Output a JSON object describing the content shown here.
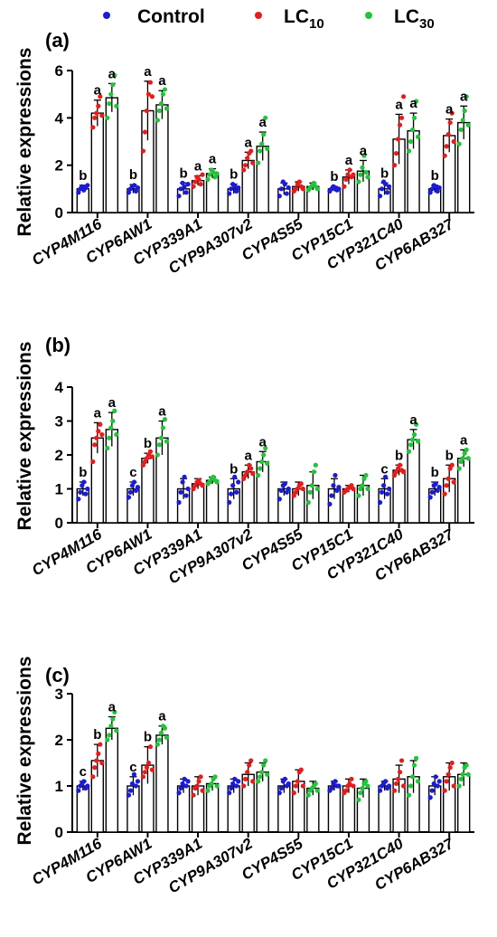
{
  "legend": [
    {
      "name": "Control",
      "sub": "",
      "color": "#1b1bd8"
    },
    {
      "name": "LC",
      "sub": "10",
      "color": "#e81b1b"
    },
    {
      "name": "LC",
      "sub": "30",
      "color": "#22c43a"
    }
  ],
  "chart_data": [
    {
      "type": "bar",
      "panel_label": "(a)",
      "ylabel": "Relative expressions",
      "ylim": [
        0,
        6
      ],
      "yticks": [
        0,
        2,
        4,
        6
      ],
      "categories": [
        "CYP4M116",
        "CYP6AW1",
        "CYP339A1",
        "CYP9A307v2",
        "CYP4S55",
        "CYP15C1",
        "CYP321C40",
        "CYP6AB327"
      ],
      "series": [
        {
          "name": "Control",
          "values": [
            1.0,
            1.0,
            1.0,
            1.0,
            1.0,
            1.0,
            1.0,
            1.0
          ],
          "errors": [
            0.15,
            0.18,
            0.25,
            0.2,
            0.25,
            0.1,
            0.25,
            0.15
          ],
          "points": [
            [
              0.85,
              1.0,
              1.1,
              0.95,
              1.05,
              1.15
            ],
            [
              0.85,
              1.0,
              1.1,
              1.15,
              0.9,
              1.05
            ],
            [
              0.7,
              1.0,
              1.25,
              1.1,
              0.85,
              1.2
            ],
            [
              0.8,
              1.0,
              1.2,
              1.1,
              0.9,
              1.05
            ],
            [
              0.7,
              1.0,
              1.3,
              1.2,
              0.8,
              1.05
            ],
            [
              0.9,
              1.0,
              1.1,
              1.05,
              0.95,
              1.0
            ],
            [
              0.7,
              1.0,
              1.3,
              1.2,
              0.85,
              1.1
            ],
            [
              0.85,
              1.0,
              1.15,
              1.1,
              0.9,
              1.05
            ]
          ]
        },
        {
          "name": "LC10",
          "values": [
            4.2,
            4.3,
            1.35,
            2.2,
            1.1,
            1.5,
            3.1,
            3.25
          ],
          "errors": [
            0.55,
            1.25,
            0.2,
            0.35,
            0.2,
            0.3,
            1.05,
            0.7
          ],
          "points": [
            [
              3.6,
              4.0,
              4.2,
              4.5,
              4.9,
              4.1
            ],
            [
              2.6,
              3.4,
              4.3,
              5.0,
              5.5,
              4.9
            ],
            [
              1.1,
              1.3,
              1.5,
              1.4,
              1.2,
              1.6
            ],
            [
              1.8,
              2.0,
              2.3,
              2.5,
              2.6,
              2.1
            ],
            [
              0.9,
              1.0,
              1.2,
              1.3,
              1.1,
              1.0
            ],
            [
              1.1,
              1.4,
              1.6,
              1.8,
              1.5,
              1.6
            ],
            [
              2.0,
              2.5,
              3.1,
              3.7,
              4.0,
              4.9
            ],
            [
              2.4,
              2.8,
              3.3,
              3.8,
              4.2,
              3.0
            ]
          ]
        },
        {
          "name": "LC30",
          "values": [
            4.85,
            4.55,
            1.65,
            2.8,
            1.1,
            1.75,
            3.45,
            3.8
          ],
          "errors": [
            0.6,
            0.6,
            0.2,
            0.6,
            0.15,
            0.45,
            0.75,
            0.7
          ],
          "points": [
            [
              4.0,
              4.6,
              5.0,
              5.4,
              5.8,
              4.5
            ],
            [
              3.9,
              4.3,
              4.6,
              5.0,
              5.2,
              4.4
            ],
            [
              1.4,
              1.6,
              1.8,
              1.7,
              1.5,
              1.65
            ],
            [
              2.1,
              2.6,
              2.9,
              3.3,
              4.0,
              2.7
            ],
            [
              0.95,
              1.05,
              1.15,
              1.25,
              1.1,
              1.0
            ],
            [
              1.3,
              1.6,
              1.9,
              2.4,
              1.7,
              1.5
            ],
            [
              2.6,
              3.0,
              3.5,
              4.0,
              4.7,
              3.2
            ],
            [
              2.9,
              3.5,
              3.9,
              4.3,
              4.9,
              3.7
            ]
          ]
        }
      ],
      "significance": [
        [
          "b",
          "a",
          "a"
        ],
        [
          "b",
          "a",
          "a"
        ],
        [
          "b",
          "a",
          "a"
        ],
        [
          "b",
          "a",
          "a"
        ],
        [
          "",
          "",
          ""
        ],
        [
          "b",
          "a",
          "a"
        ],
        [
          "b",
          "a",
          "a"
        ],
        [
          "b",
          "a",
          "a"
        ]
      ]
    },
    {
      "type": "bar",
      "panel_label": "(b)",
      "ylabel": "Relative expressions",
      "ylim": [
        0,
        4
      ],
      "yticks": [
        0,
        1,
        2,
        3,
        4
      ],
      "categories": [
        "CYP4M116",
        "CYP6AW1",
        "CYP339A1",
        "CYP9A307v2",
        "CYP4S55",
        "CYP15C1",
        "CYP321C40",
        "CYP6AB327"
      ],
      "series": [
        {
          "name": "Control",
          "values": [
            1.0,
            1.0,
            1.0,
            1.0,
            1.0,
            1.0,
            1.0,
            1.0
          ],
          "errors": [
            0.2,
            0.2,
            0.3,
            0.3,
            0.2,
            0.3,
            0.3,
            0.2
          ],
          "points": [
            [
              0.7,
              0.9,
              1.1,
              1.2,
              0.85,
              1.0
            ],
            [
              0.75,
              0.9,
              1.1,
              1.2,
              0.95,
              1.05
            ],
            [
              0.6,
              0.9,
              1.2,
              1.35,
              0.8,
              1.0
            ],
            [
              0.6,
              0.85,
              1.1,
              1.35,
              0.9,
              1.2
            ],
            [
              0.7,
              0.95,
              1.1,
              1.15,
              0.9,
              1.0
            ],
            [
              0.55,
              0.8,
              1.1,
              1.4,
              0.95,
              1.05
            ],
            [
              0.6,
              0.9,
              1.1,
              1.35,
              0.85,
              1.0
            ],
            [
              0.75,
              0.9,
              1.1,
              1.15,
              0.95,
              1.05
            ]
          ]
        },
        {
          "name": "LC10",
          "values": [
            2.5,
            1.9,
            1.15,
            1.5,
            1.0,
            1.0,
            1.55,
            1.3
          ],
          "errors": [
            0.45,
            0.15,
            0.15,
            0.2,
            0.2,
            0.1,
            0.15,
            0.4
          ],
          "points": [
            [
              1.8,
              2.3,
              2.5,
              2.7,
              2.9,
              2.6
            ],
            [
              1.7,
              1.8,
              1.9,
              2.0,
              2.1,
              1.95
            ],
            [
              1.0,
              1.1,
              1.2,
              1.25,
              1.15,
              1.1
            ],
            [
              1.3,
              1.4,
              1.5,
              1.7,
              1.6,
              1.45
            ],
            [
              0.8,
              0.9,
              1.0,
              1.1,
              1.15,
              1.0
            ],
            [
              0.9,
              0.95,
              1.0,
              1.05,
              1.1,
              1.0
            ],
            [
              1.4,
              1.5,
              1.6,
              1.7,
              1.55,
              1.5
            ],
            [
              0.85,
              1.1,
              1.3,
              1.6,
              1.7,
              1.2
            ]
          ]
        },
        {
          "name": "LC30",
          "values": [
            2.75,
            2.5,
            1.25,
            1.8,
            1.1,
            1.1,
            2.45,
            1.9
          ],
          "errors": [
            0.5,
            0.5,
            0.1,
            0.3,
            0.4,
            0.3,
            0.3,
            0.25
          ],
          "points": [
            [
              2.2,
              2.5,
              2.8,
              3.0,
              3.3,
              2.6
            ],
            [
              2.0,
              2.3,
              2.5,
              2.8,
              3.05,
              2.4
            ],
            [
              1.15,
              1.2,
              1.3,
              1.35,
              1.25,
              1.2
            ],
            [
              1.4,
              1.6,
              1.8,
              2.0,
              2.2,
              1.75
            ],
            [
              0.6,
              0.9,
              1.1,
              1.5,
              1.7,
              1.0
            ],
            [
              0.8,
              1.0,
              1.1,
              1.3,
              1.4,
              1.0
            ],
            [
              2.1,
              2.3,
              2.45,
              2.6,
              2.9,
              2.4
            ],
            [
              1.6,
              1.8,
              1.9,
              2.05,
              2.15,
              1.9
            ]
          ]
        }
      ],
      "significance": [
        [
          "b",
          "a",
          "a"
        ],
        [
          "c",
          "b",
          "a"
        ],
        [
          "",
          "",
          ""
        ],
        [
          "b",
          "a",
          "a"
        ],
        [
          "",
          "",
          ""
        ],
        [
          "",
          "",
          ""
        ],
        [
          "c",
          "b",
          "a"
        ],
        [
          "b",
          "b",
          "a"
        ]
      ]
    },
    {
      "type": "bar",
      "panel_label": "(c)",
      "ylabel": "Relative expressions",
      "ylim": [
        0,
        3
      ],
      "yticks": [
        0,
        1,
        2,
        3
      ],
      "categories": [
        "CYP4M116",
        "CYP6AW1",
        "CYP339A1",
        "CYP9A307v2",
        "CYP4S55",
        "CYP15C1",
        "CYP321C40",
        "CYP6AB327"
      ],
      "series": [
        {
          "name": "Control",
          "values": [
            1.0,
            1.0,
            1.0,
            1.0,
            1.0,
            1.0,
            1.0,
            1.0
          ],
          "errors": [
            0.1,
            0.2,
            0.15,
            0.15,
            0.15,
            0.1,
            0.1,
            0.2
          ],
          "points": [
            [
              0.9,
              1.0,
              1.05,
              1.1,
              0.95,
              1.0
            ],
            [
              0.8,
              0.9,
              1.05,
              1.25,
              1.0,
              1.1
            ],
            [
              0.85,
              0.95,
              1.05,
              1.15,
              1.0,
              1.1
            ],
            [
              0.85,
              0.95,
              1.05,
              1.15,
              1.0,
              1.1
            ],
            [
              0.85,
              0.95,
              1.1,
              1.15,
              1.0,
              1.05
            ],
            [
              0.9,
              0.95,
              1.05,
              1.1,
              1.0,
              1.0
            ],
            [
              0.9,
              1.0,
              1.05,
              1.1,
              0.95,
              1.0
            ],
            [
              0.75,
              0.9,
              1.05,
              1.2,
              1.0,
              1.1
            ]
          ]
        },
        {
          "name": "LC10",
          "values": [
            1.55,
            1.45,
            1.0,
            1.25,
            1.1,
            1.0,
            1.15,
            1.2
          ],
          "errors": [
            0.35,
            0.4,
            0.2,
            0.25,
            0.25,
            0.15,
            0.3,
            0.3
          ],
          "points": [
            [
              1.2,
              1.4,
              1.55,
              1.7,
              1.9,
              1.5
            ],
            [
              1.2,
              1.3,
              1.4,
              1.5,
              1.85,
              1.35
            ],
            [
              0.8,
              0.95,
              1.0,
              1.1,
              1.2,
              0.9
            ],
            [
              1.0,
              1.15,
              1.3,
              1.45,
              1.55,
              1.1
            ],
            [
              0.85,
              1.0,
              1.1,
              1.3,
              1.35,
              1.0
            ],
            [
              0.85,
              0.9,
              1.0,
              1.05,
              1.15,
              1.0
            ],
            [
              0.9,
              1.05,
              1.15,
              1.3,
              1.55,
              1.0
            ],
            [
              0.9,
              1.1,
              1.25,
              1.4,
              1.5,
              1.0
            ]
          ]
        },
        {
          "name": "LC30",
          "values": [
            2.25,
            2.1,
            1.05,
            1.3,
            0.95,
            0.95,
            1.2,
            1.25
          ],
          "errors": [
            0.25,
            0.2,
            0.15,
            0.2,
            0.15,
            0.2,
            0.35,
            0.25
          ],
          "points": [
            [
              2.0,
              2.1,
              2.3,
              2.45,
              2.6,
              2.2
            ],
            [
              1.9,
              2.0,
              2.15,
              2.3,
              2.25,
              2.05
            ],
            [
              0.9,
              1.0,
              1.05,
              1.15,
              1.2,
              1.0
            ],
            [
              1.1,
              1.2,
              1.3,
              1.45,
              1.55,
              1.25
            ],
            [
              0.8,
              0.9,
              0.95,
              1.0,
              1.05,
              0.9
            ],
            [
              0.7,
              0.85,
              0.95,
              1.05,
              1.1,
              1.0
            ],
            [
              0.8,
              1.0,
              1.2,
              1.45,
              1.6,
              1.1
            ],
            [
              1.0,
              1.15,
              1.25,
              1.4,
              1.45,
              1.25
            ]
          ]
        }
      ],
      "significance": [
        [
          "c",
          "b",
          "a"
        ],
        [
          "c",
          "b",
          "a"
        ],
        [
          "",
          "",
          ""
        ],
        [
          "",
          "",
          ""
        ],
        [
          "",
          "",
          ""
        ],
        [
          "",
          "",
          ""
        ],
        [
          "",
          "",
          ""
        ],
        [
          "",
          "",
          ""
        ]
      ]
    }
  ]
}
